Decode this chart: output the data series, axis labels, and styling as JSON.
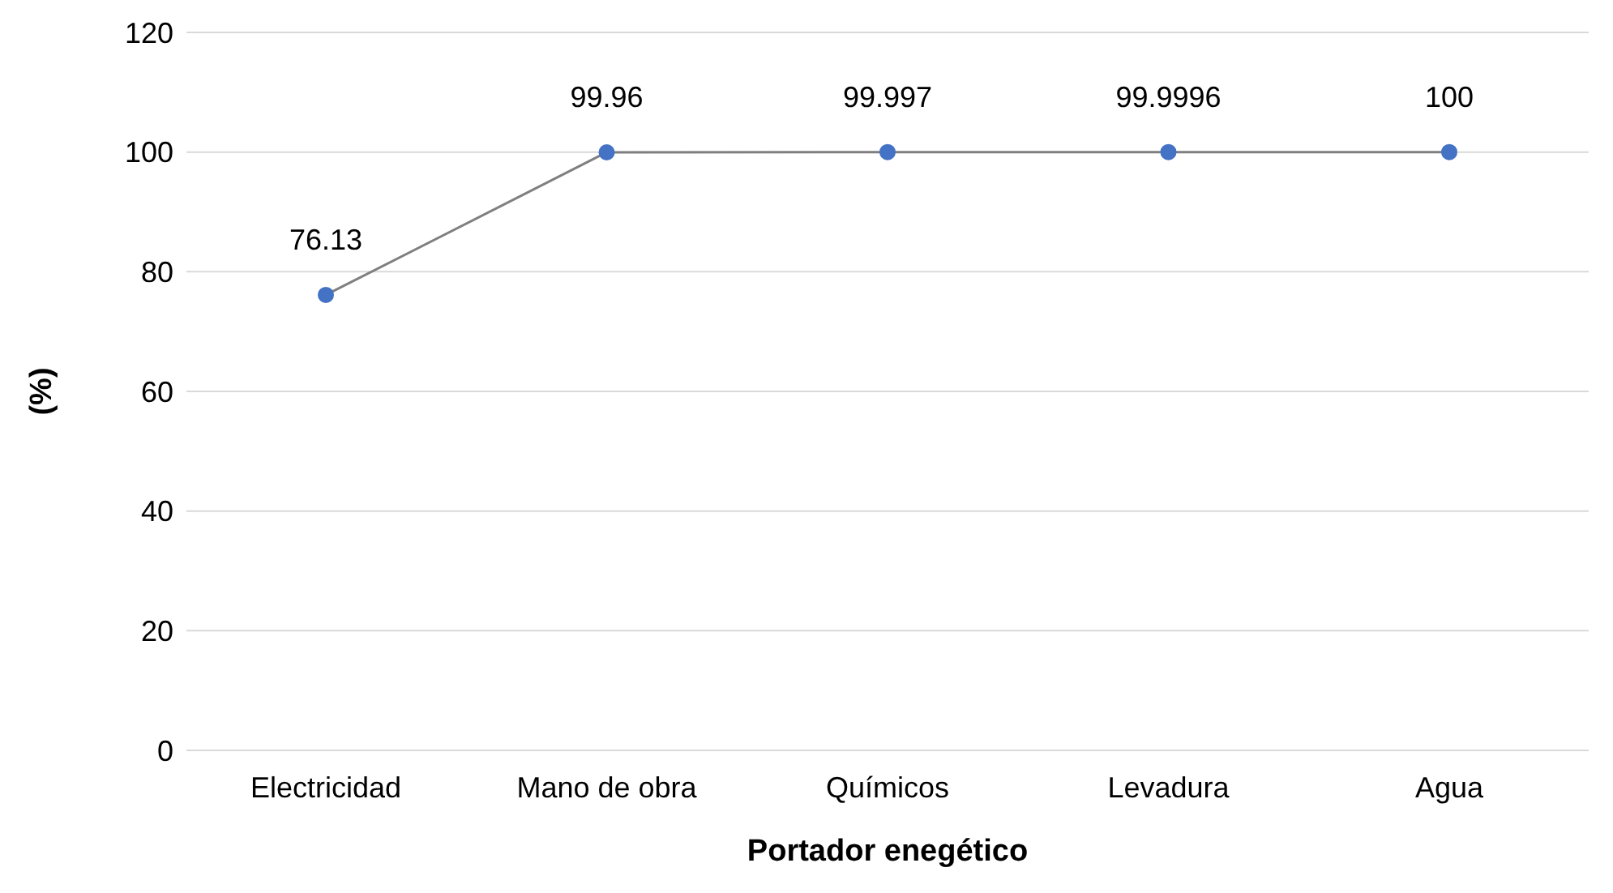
{
  "chart_data": {
    "type": "line",
    "xlabel": "Portador enegético",
    "ylabel": "(%)",
    "categories": [
      "Electricidad",
      "Mano de obra",
      "Químicos",
      "Levadura",
      "Agua"
    ],
    "series": [
      {
        "color": "#7f7f7f",
        "colors": [
          "#4472c4",
          "#4472c4",
          "#4472c4",
          "#4472c4",
          "#4472c4"
        ],
        "values": [
          76.13,
          99.96,
          99.997,
          99.9996,
          100
        ]
      }
    ],
    "ylim": [
      0,
      120
    ],
    "yticks": [
      0,
      20,
      40,
      60,
      80,
      100,
      120
    ],
    "grid": "y",
    "marker": "circle",
    "line_style": "solid",
    "data_labels": true
  }
}
